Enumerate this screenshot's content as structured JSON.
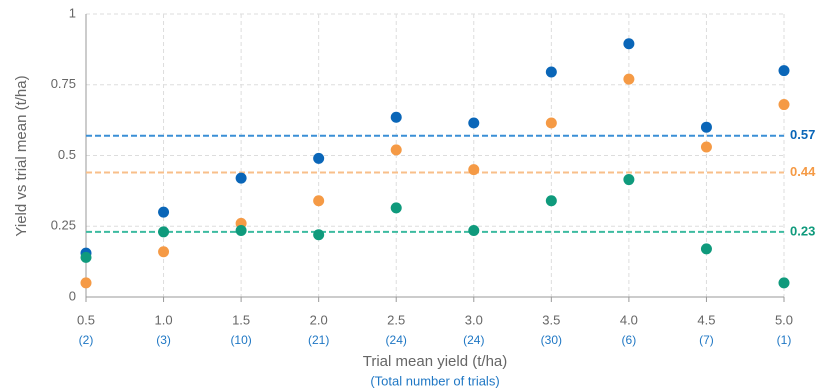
{
  "chart_data": {
    "type": "scatter",
    "x_label": "Trial mean yield (t/ha)",
    "x_sublabel": "(Total number of trials)",
    "y_label": "Yield vs trial mean (t/ha)",
    "x": [
      0.5,
      1,
      1.5,
      2,
      2.5,
      3,
      3.5,
      4,
      4.5,
      5
    ],
    "trial_counts": [
      "(2)",
      "(3)",
      "(10)",
      "(21)",
      "(24)",
      "(24)",
      "(30)",
      "(6)",
      "(7)",
      "(1)"
    ],
    "series": [
      {
        "color": "#0a66b8",
        "values": [
          0.155,
          0.3,
          0.42,
          0.49,
          0.635,
          0.615,
          0.795,
          0.895,
          0.6,
          0.8
        ]
      },
      {
        "color": "#f59a45",
        "values": [
          0.05,
          0.16,
          0.26,
          0.34,
          0.52,
          0.45,
          0.615,
          0.77,
          0.53,
          0.68
        ]
      },
      {
        "color": "#0f9a7c",
        "values": [
          0.14,
          0.23,
          0.235,
          0.22,
          0.315,
          0.235,
          0.34,
          0.415,
          0.17,
          0.05
        ]
      }
    ],
    "reference_lines": [
      {
        "value": 0.57,
        "color": "#3a8fd6",
        "label_color": "#0a66b8"
      },
      {
        "value": 0.44,
        "color": "#f8bf8a",
        "label_color": "#f59a45"
      },
      {
        "value": 0.23,
        "color": "#3dbba0",
        "label_color": "#0f9a7c"
      }
    ],
    "xlim": [
      0.5,
      5
    ],
    "xticks": [
      {
        "value": 0.5,
        "label": "0.5"
      },
      {
        "value": 1,
        "label": "1.0"
      },
      {
        "value": 1.5,
        "label": "1.5"
      },
      {
        "value": 2,
        "label": "2.0"
      },
      {
        "value": 2.5,
        "label": "2.5"
      },
      {
        "value": 3,
        "label": "3.0"
      },
      {
        "value": 3.5,
        "label": "3.5"
      },
      {
        "value": 4,
        "label": "4.0"
      },
      {
        "value": 4.5,
        "label": "4.5"
      },
      {
        "value": 5,
        "label": "5.0"
      }
    ],
    "ylim": [
      0,
      1
    ],
    "yticks": [
      0,
      0.25,
      0.5,
      0.75,
      1
    ],
    "grid": true
  }
}
